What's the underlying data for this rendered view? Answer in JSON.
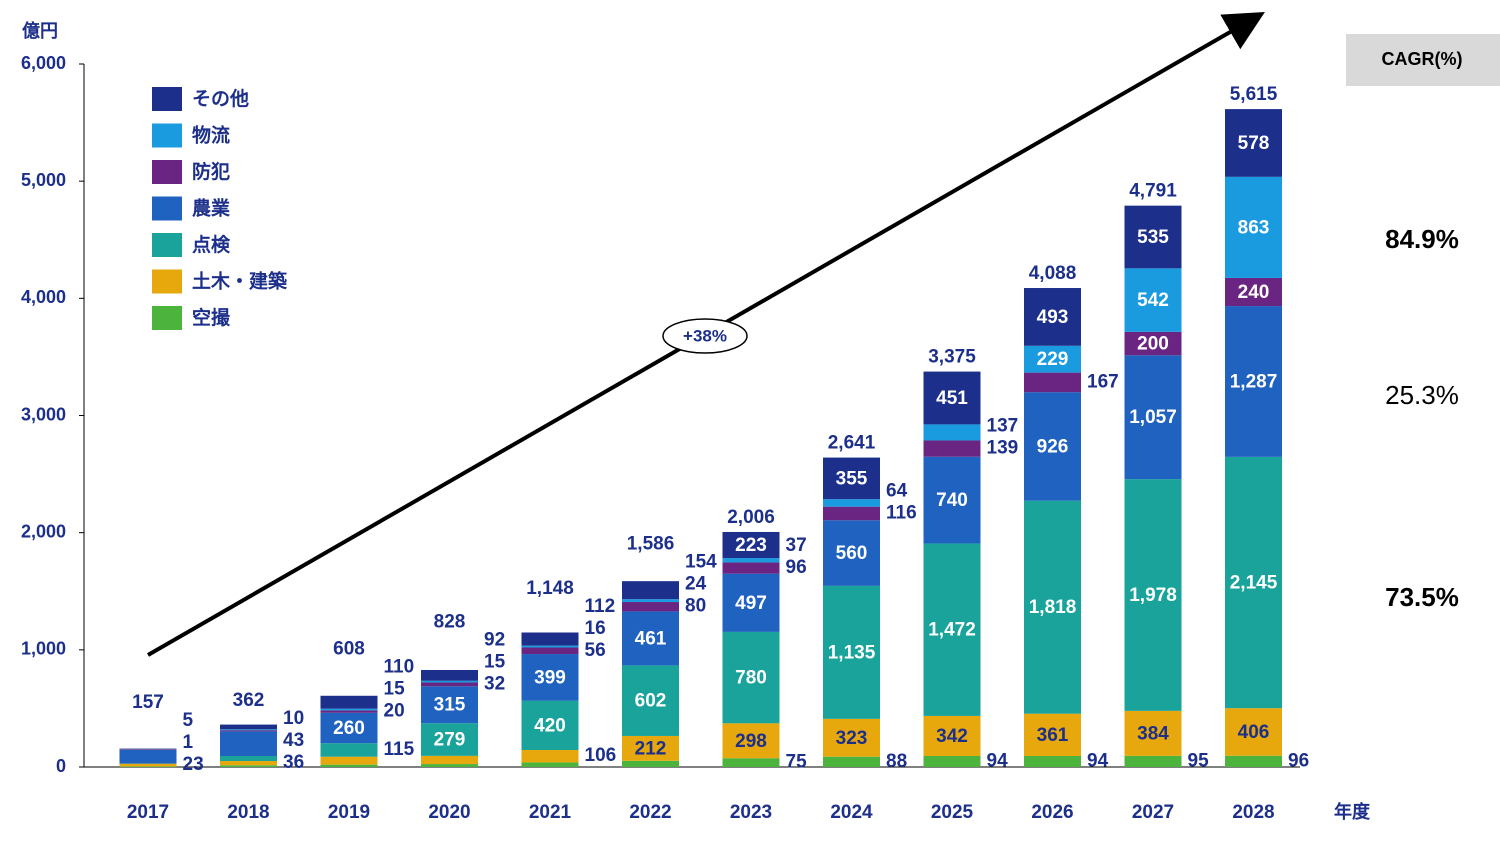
{
  "chart_data": {
    "type": "stacked_bar",
    "y_unit": "億円",
    "x_unit": "年度",
    "categories": [
      "2017",
      "2018",
      "2019",
      "2020",
      "2021",
      "2022",
      "2023",
      "2024",
      "2025",
      "2026",
      "2027",
      "2028"
    ],
    "series": [
      {
        "name": "空撮",
        "color": "#4cb33c",
        "values": [
          5,
          15,
          20,
          25,
          39,
          53,
          75,
          88,
          94,
          94,
          95,
          96
        ],
        "value_labels": [
          null,
          null,
          null,
          null,
          null,
          null,
          "75",
          "88",
          "94",
          "94",
          "95",
          "96"
        ]
      },
      {
        "name": "土木・建築",
        "color": "#e6a80c",
        "values": [
          23,
          36,
          68,
          70,
          106,
          212,
          298,
          323,
          342,
          361,
          384,
          406
        ],
        "value_labels": [
          "23",
          "36",
          null,
          null,
          "106",
          "212",
          "298",
          "323",
          "342",
          "361",
          "384",
          "406"
        ]
      },
      {
        "name": "点検",
        "color": "#1aa39a",
        "values": [
          1,
          43,
          115,
          279,
          420,
          602,
          780,
          1135,
          1472,
          1818,
          1978,
          2145
        ],
        "value_labels": [
          "1",
          "43",
          "115",
          "279",
          "420",
          "602",
          "780",
          "1,135",
          "1,472",
          "1,818",
          "1,978",
          "2,145"
        ]
      },
      {
        "name": "農業",
        "color": "#1f62c0",
        "values": [
          118,
          210,
          260,
          315,
          399,
          461,
          497,
          560,
          740,
          926,
          1057,
          1287
        ],
        "value_labels": [
          null,
          null,
          "260",
          "315",
          "399",
          "461",
          "497",
          "560",
          "740",
          "926",
          "1,057",
          "1,287"
        ]
      },
      {
        "name": "防犯",
        "color": "#6a2583",
        "values": [
          5,
          10,
          20,
          32,
          56,
          80,
          96,
          116,
          139,
          167,
          200,
          240
        ],
        "value_labels": [
          "5",
          "10",
          "20",
          "32",
          "56",
          "80",
          "96",
          "116",
          "139",
          "167",
          "200",
          "240"
        ]
      },
      {
        "name": "物流",
        "color": "#1a9be0",
        "values": [
          0,
          8,
          15,
          15,
          16,
          24,
          37,
          64,
          137,
          229,
          542,
          863
        ],
        "value_labels": [
          null,
          null,
          "15",
          "15",
          "16",
          "24",
          "37",
          "64",
          "137",
          "229",
          "542",
          "863"
        ]
      },
      {
        "name": "その他",
        "color": "#1c2f8a",
        "values": [
          5,
          40,
          110,
          92,
          112,
          154,
          223,
          355,
          451,
          493,
          535,
          578
        ],
        "value_labels": [
          null,
          null,
          "110",
          "92",
          "112",
          "154",
          "223",
          "355",
          "451",
          "493",
          "535",
          "578"
        ]
      }
    ],
    "totals": {
      "values": [
        157,
        362,
        608,
        828,
        1148,
        1586,
        2006,
        2641,
        3375,
        4088,
        4791,
        5615
      ],
      "value_labels": [
        "157",
        "362",
        "608",
        "828",
        "1,148",
        "1,586",
        "2,006",
        "2,641",
        "3,375",
        "4,088",
        "4,791",
        "5,615"
      ]
    },
    "ylim": [
      0,
      6000
    ],
    "yticks": [
      0,
      {
        "value": 1000,
        "label": "1,000"
      },
      {
        "value": 2000,
        "label": "2,000"
      },
      {
        "value": 3000,
        "label": "3,000"
      },
      {
        "value": 4000,
        "label": "4,000"
      },
      {
        "value": 5000,
        "label": "5,000"
      },
      {
        "value": 6000,
        "label": "6,000"
      }
    ],
    "annotation": "+38%",
    "cagr_title": "CAGR(%)",
    "cagr_labels": [
      "84.9%",
      "25.3%",
      "73.5%"
    ]
  }
}
